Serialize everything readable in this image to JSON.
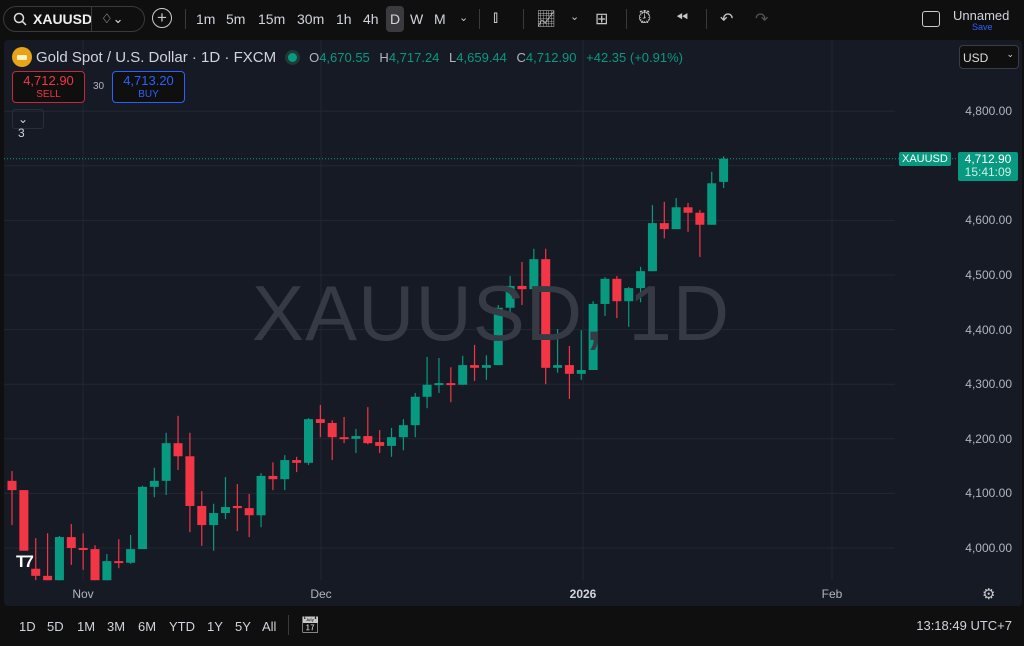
{
  "toolbar": {
    "symbol": "XAUUSD",
    "timeframes": [
      "1m",
      "5m",
      "15m",
      "30m",
      "1h",
      "4h",
      "D",
      "W",
      "M"
    ],
    "active_timeframe": "D",
    "layout_name": "Unnamed",
    "save_label": "Save"
  },
  "legend": {
    "title": "Gold Spot / U.S. Dollar · 1D · FXCM",
    "o_label": "O",
    "o": "4,670.55",
    "h_label": "H",
    "h": "4,717.24",
    "l_label": "L",
    "l": "4,659.44",
    "c_label": "C",
    "c": "4,712.90",
    "change": "+42.35 (+0.91%)"
  },
  "trade": {
    "sell_price": "4,712.90",
    "sell_label": "SELL",
    "spread": "30",
    "buy_price": "4,713.20",
    "buy_label": "BUY",
    "indicators_count": "3"
  },
  "currency": "USD",
  "watermark": "XAUUSD, 1D",
  "price_axis": [
    "4,800.00",
    "4,600.00",
    "4,500.00",
    "4,400.00",
    "4,300.00",
    "4,200.00",
    "4,100.00",
    "4,000.00"
  ],
  "last_price": {
    "symbol": "XAUUSD",
    "price": "4,712.90",
    "countdown": "15:41:09"
  },
  "time_axis": [
    "Nov",
    "Dec",
    "2026",
    "Feb"
  ],
  "bottom": {
    "ranges": [
      "1D",
      "5D",
      "1M",
      "3M",
      "6M",
      "YTD",
      "1Y",
      "5Y",
      "All"
    ],
    "clock": "13:18:49 UTC+7"
  },
  "colors": {
    "up": "#089981",
    "down": "#f23645",
    "bg": "#161a25",
    "buy": "#2962ff"
  },
  "chart_data": {
    "type": "candlestick",
    "ylim": [
      3920,
      4880
    ],
    "candles": [
      [
        4123,
        4141,
        4042,
        4106
      ],
      [
        4106,
        4106,
        3995,
        3995
      ],
      [
        3962,
        4018,
        3941,
        3949
      ],
      [
        3949,
        4027,
        3941,
        3941
      ],
      [
        3941,
        4022,
        3941,
        4020
      ],
      [
        4020,
        4044,
        3969,
        4000
      ],
      [
        4000,
        4027,
        3960,
        3998
      ],
      [
        3998,
        4005,
        3941,
        3941
      ],
      [
        3941,
        3989,
        3941,
        3976
      ],
      [
        3976,
        4016,
        3963,
        3973
      ],
      [
        3973,
        4024,
        3971,
        3998
      ],
      [
        3998,
        4114,
        3998,
        4112
      ],
      [
        4112,
        4147,
        4093,
        4123
      ],
      [
        4123,
        4211,
        4097,
        4192
      ],
      [
        4192,
        4242,
        4143,
        4168
      ],
      [
        4168,
        4211,
        4029,
        4077
      ],
      [
        4077,
        4104,
        4004,
        4042
      ],
      [
        4042,
        4081,
        3995,
        4064
      ],
      [
        4064,
        4130,
        4053,
        4075
      ],
      [
        4077,
        4117,
        4031,
        4073
      ],
      [
        4073,
        4099,
        4020,
        4060
      ],
      [
        4060,
        4137,
        4038,
        4132
      ],
      [
        4132,
        4157,
        4106,
        4126
      ],
      [
        4126,
        4170,
        4106,
        4161
      ],
      [
        4161,
        4167,
        4139,
        4156
      ],
      [
        4156,
        4238,
        4152,
        4236
      ],
      [
        4236,
        4262,
        4203,
        4229
      ],
      [
        4229,
        4234,
        4161,
        4203
      ],
      [
        4203,
        4240,
        4192,
        4200
      ],
      [
        4200,
        4218,
        4174,
        4205
      ],
      [
        4205,
        4258,
        4190,
        4192
      ],
      [
        4194,
        4216,
        4174,
        4187
      ],
      [
        4187,
        4220,
        4167,
        4203
      ],
      [
        4203,
        4236,
        4179,
        4225
      ],
      [
        4225,
        4284,
        4203,
        4277
      ],
      [
        4277,
        4350,
        4256,
        4299
      ],
      [
        4299,
        4348,
        4284,
        4302
      ],
      [
        4302,
        4331,
        4267,
        4299
      ],
      [
        4299,
        4352,
        4299,
        4335
      ],
      [
        4335,
        4372,
        4306,
        4330
      ],
      [
        4330,
        4353,
        4308,
        4335
      ],
      [
        4335,
        4445,
        4335,
        4440
      ],
      [
        4440,
        4498,
        4429,
        4480
      ],
      [
        4480,
        4524,
        4445,
        4474
      ],
      [
        4474,
        4548,
        4474,
        4529
      ],
      [
        4529,
        4548,
        4300,
        4330
      ],
      [
        4330,
        4401,
        4321,
        4335
      ],
      [
        4335,
        4370,
        4273,
        4319
      ],
      [
        4319,
        4399,
        4308,
        4326
      ],
      [
        4326,
        4452,
        4326,
        4447
      ],
      [
        4447,
        4496,
        4425,
        4493
      ],
      [
        4493,
        4498,
        4421,
        4452
      ],
      [
        4452,
        4478,
        4405,
        4476
      ],
      [
        4476,
        4515,
        4450,
        4507
      ],
      [
        4507,
        4628,
        4507,
        4595
      ],
      [
        4595,
        4634,
        4567,
        4584
      ],
      [
        4584,
        4641,
        4584,
        4624
      ],
      [
        4624,
        4632,
        4579,
        4614
      ],
      [
        4614,
        4619,
        4533,
        4592
      ],
      [
        4592,
        4689,
        4592,
        4668
      ],
      [
        4670.55,
        4717.24,
        4659.44,
        4712.9
      ]
    ]
  }
}
